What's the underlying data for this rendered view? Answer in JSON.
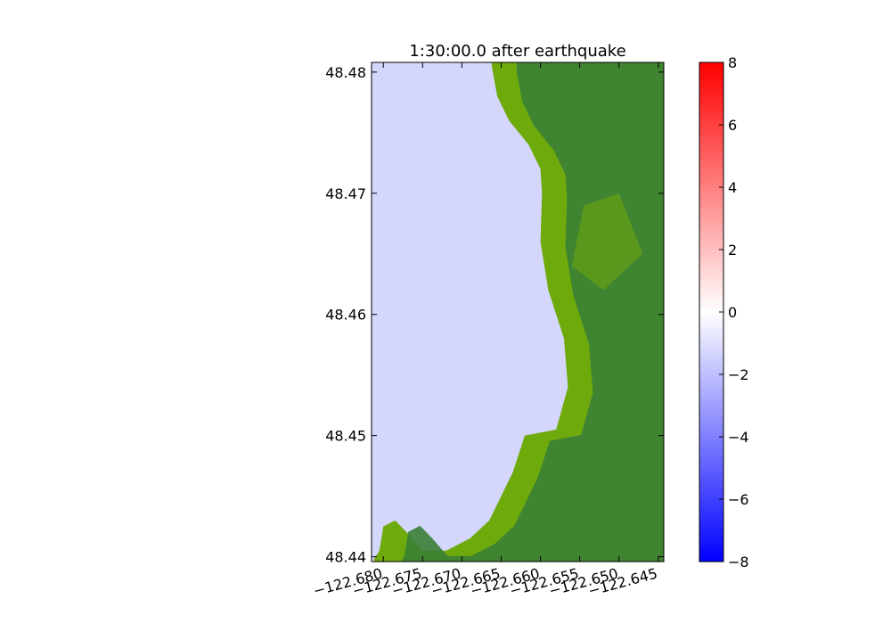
{
  "chart_data": {
    "type": "heatmap",
    "title": "1:30:00.0 after earthquake",
    "xlabel": "",
    "ylabel": "",
    "xlim": [
      -122.6815,
      -122.6443
    ],
    "ylim": [
      48.4396,
      48.4808
    ],
    "x_ticks": [
      -122.68,
      -122.675,
      -122.67,
      -122.665,
      -122.66,
      -122.655,
      -122.65,
      -122.645
    ],
    "x_tick_labels": [
      "−122.680",
      "−122.675",
      "−122.670",
      "−122.665",
      "−122.660",
      "−122.655",
      "−122.650",
      "−122.645"
    ],
    "y_ticks": [
      48.44,
      48.45,
      48.46,
      48.47,
      48.48
    ],
    "y_tick_labels": [
      "48.44",
      "48.45",
      "48.46",
      "48.47",
      "48.48"
    ],
    "colorbar": {
      "min": -8,
      "max": 8,
      "ticks": [
        8,
        6,
        4,
        2,
        0,
        -2,
        -4,
        -6,
        -8
      ],
      "tick_labels": [
        "8",
        "6",
        "4",
        "2",
        "0",
        "−2",
        "−4",
        "−6",
        "−8"
      ],
      "colormap": [
        "#0000ff",
        "#ffffff",
        "#ff0000"
      ]
    },
    "water_level": -2.2,
    "water_color": "#d4d6fc",
    "land_colors": {
      "coastal": "#6faa0c",
      "inland": "#3a7f35"
    },
    "shoreline": [
      [
        -122.6662,
        48.4805
      ],
      [
        -122.6655,
        48.478
      ],
      [
        -122.664,
        48.476
      ],
      [
        -122.6615,
        48.474
      ],
      [
        -122.66,
        48.472
      ],
      [
        -122.6598,
        48.47
      ],
      [
        -122.66,
        48.466
      ],
      [
        -122.659,
        48.462
      ],
      [
        -122.657,
        48.458
      ],
      [
        -122.6565,
        48.454
      ],
      [
        -122.658,
        48.4505
      ],
      [
        -122.662,
        48.45
      ],
      [
        -122.6635,
        48.447
      ],
      [
        -122.665,
        48.445
      ],
      [
        -122.6665,
        48.443
      ],
      [
        -122.669,
        48.4415
      ],
      [
        -122.672,
        48.4405
      ],
      [
        -122.675,
        48.4405
      ],
      [
        -122.677,
        48.442
      ],
      [
        -122.6785,
        48.443
      ],
      [
        -122.68,
        48.4425
      ],
      [
        -122.6805,
        48.4405
      ],
      [
        -122.6812,
        48.4398
      ]
    ]
  }
}
